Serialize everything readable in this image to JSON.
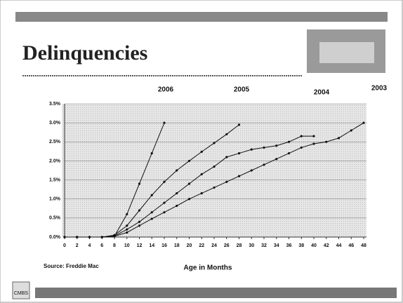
{
  "chart_data": {
    "type": "line",
    "title": "Delinquencies",
    "x_label": "Age in Months",
    "source": "Source: Freddie Mac",
    "logo": "CMBS",
    "x": [
      0,
      2,
      4,
      6,
      8,
      10,
      12,
      14,
      16,
      18,
      20,
      22,
      24,
      26,
      28,
      30,
      32,
      34,
      36,
      38,
      40,
      42,
      44,
      46,
      48
    ],
    "xlim": [
      0,
      48
    ],
    "xticks": [
      0,
      2,
      4,
      6,
      8,
      10,
      12,
      14,
      16,
      18,
      20,
      22,
      24,
      26,
      28,
      30,
      32,
      34,
      36,
      38,
      40,
      42,
      44,
      46,
      48
    ],
    "ylim": [
      0,
      3.5
    ],
    "yticks": [
      {
        "value": 0,
        "label": "0.0%"
      },
      {
        "value": 0.5,
        "label": "0.5%"
      },
      {
        "value": 1,
        "label": "1.0%"
      },
      {
        "value": 1.5,
        "label": "1.5%"
      },
      {
        "value": 2,
        "label": "2.0%"
      },
      {
        "value": 2.5,
        "label": "2.5%"
      },
      {
        "value": 3,
        "label": "3.0%"
      },
      {
        "value": 3.5,
        "label": "3.5%"
      }
    ],
    "grid": true,
    "series": [
      {
        "name": "2006",
        "color": "#111111",
        "values": [
          0,
          0,
          0,
          0,
          0.02,
          0.6,
          1.4,
          2.2,
          3.0,
          null,
          null,
          null,
          null,
          null,
          null,
          null,
          null,
          null,
          null,
          null,
          null,
          null,
          null,
          null,
          null
        ]
      },
      {
        "name": "2005",
        "color": "#111111",
        "values": [
          0,
          0,
          0,
          0,
          0.05,
          0.3,
          0.7,
          1.1,
          1.45,
          1.75,
          2.0,
          2.24,
          2.47,
          2.7,
          2.95,
          null,
          null,
          null,
          null,
          null,
          null,
          null,
          null,
          null,
          null
        ]
      },
      {
        "name": "2004",
        "color": "#111111",
        "values": [
          0,
          0,
          0,
          0,
          0.03,
          0.2,
          0.4,
          0.65,
          0.9,
          1.15,
          1.4,
          1.65,
          1.85,
          2.1,
          2.2,
          2.3,
          2.35,
          2.4,
          2.5,
          2.65,
          2.65,
          null,
          null,
          null,
          null
        ]
      },
      {
        "name": "2003",
        "color": "#111111",
        "values": [
          0,
          0,
          0,
          0,
          0.02,
          0.12,
          0.3,
          0.48,
          0.65,
          0.82,
          1.0,
          1.15,
          1.3,
          1.45,
          1.6,
          1.75,
          1.9,
          2.05,
          2.2,
          2.35,
          2.45,
          2.5,
          2.6,
          2.8,
          3.0
        ]
      }
    ]
  }
}
